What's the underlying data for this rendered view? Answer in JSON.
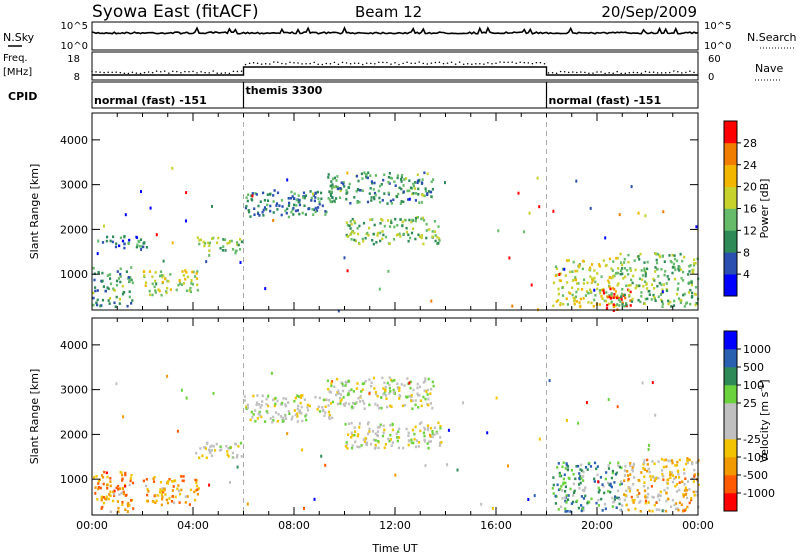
{
  "header": {
    "title": "Syowa East (fitACF)",
    "beam": "Beam 12",
    "date": "20/Sep/2009"
  },
  "top_panels": {
    "nsky_label": "N.Sky",
    "nsearch_label": "N.Search",
    "nsky_ticks": [
      "10^5",
      "10^0"
    ],
    "nsearch_ticks": [
      "10^5",
      "10^0"
    ],
    "freq_label": "Freq.",
    "freq_unit": "[MHz]",
    "freq_ticks": [
      "18",
      "8"
    ],
    "nave_label": "Nave",
    "nave_ticks": [
      "60",
      "0"
    ],
    "cpid_label": "CPID",
    "cpid_segments": [
      {
        "label": "normal (fast) -151",
        "start_h": 0,
        "end_h": 6
      },
      {
        "label": "themis 3300",
        "start_h": 6,
        "end_h": 18
      },
      {
        "label": "normal (fast) -151",
        "start_h": 18,
        "end_h": 24
      }
    ]
  },
  "colors": {
    "power_scale": [
      "#0000ff",
      "#2a4fb0",
      "#2e8b57",
      "#66bb6a",
      "#c8d22c",
      "#f2b600",
      "#f07d00",
      "#ff0000"
    ],
    "velocity_scale": [
      "#ff0000",
      "#ff5a00",
      "#f09a00",
      "#f2c300",
      "#c0c0c0",
      "#c0c0c0",
      "#6ad23c",
      "#2e8b57",
      "#2a60b0",
      "#0000ff"
    ]
  },
  "chart_data": [
    {
      "type": "heatmap",
      "name": "power-panel",
      "xlabel": "",
      "ylabel": "Slant Range [km]",
      "xlim": [
        0,
        24
      ],
      "ylim": [
        200,
        4600
      ],
      "y_ticks": [
        1000,
        2000,
        3000,
        4000
      ],
      "y_tick_labels": [
        "1000",
        "2000",
        "3000",
        "4000"
      ],
      "colorbar": {
        "label": "Power [dB]",
        "range": [
          0,
          32
        ],
        "ticks": [
          "28",
          "24",
          "20",
          "16",
          "12",
          "8",
          "4"
        ]
      },
      "echo_regions": [
        {
          "t0": 0.0,
          "t1": 1.6,
          "r0": 300,
          "r1": 1200,
          "level": 0.35
        },
        {
          "t0": 0.3,
          "t1": 2.2,
          "r0": 1600,
          "r1": 1900,
          "level": 0.25
        },
        {
          "t0": 2.0,
          "t1": 4.2,
          "r0": 550,
          "r1": 1100,
          "level": 0.55
        },
        {
          "t0": 4.0,
          "t1": 5.9,
          "r0": 1500,
          "r1": 1850,
          "level": 0.45
        },
        {
          "t0": 6.0,
          "t1": 9.5,
          "r0": 2300,
          "r1": 2900,
          "level": 0.3
        },
        {
          "t0": 9.3,
          "t1": 13.5,
          "r0": 2600,
          "r1": 3300,
          "level": 0.35
        },
        {
          "t0": 10.0,
          "t1": 13.8,
          "r0": 1700,
          "r1": 2300,
          "level": 0.45
        },
        {
          "t0": 18.2,
          "t1": 20.8,
          "r0": 300,
          "r1": 1400,
          "level": 0.55
        },
        {
          "t0": 20.2,
          "t1": 21.3,
          "r0": 200,
          "r1": 700,
          "level": 0.95
        },
        {
          "t0": 20.8,
          "t1": 24.0,
          "r0": 300,
          "r1": 1500,
          "level": 0.45
        }
      ]
    },
    {
      "type": "heatmap",
      "name": "velocity-panel",
      "xlabel": "Time UT",
      "ylabel": "Slant Range [km]",
      "xlim": [
        0,
        24
      ],
      "ylim": [
        200,
        4600
      ],
      "x_ticks": [
        0,
        4,
        8,
        12,
        16,
        20,
        24
      ],
      "x_tick_labels": [
        "00:00",
        "04:00",
        "08:00",
        "12:00",
        "16:00",
        "20:00",
        "00:00"
      ],
      "y_ticks": [
        1000,
        2000,
        3000,
        4000
      ],
      "y_tick_labels": [
        "1000",
        "2000",
        "3000",
        "4000"
      ],
      "colorbar": {
        "label": "Velocity [m s^-1]",
        "ticks": [
          "1000",
          "500",
          "100",
          "25",
          "-25",
          "-100",
          "-500",
          "-1000"
        ]
      },
      "echo_regions": [
        {
          "t0": 0.0,
          "t1": 1.6,
          "r0": 300,
          "r1": 1200,
          "level": 0.25
        },
        {
          "t0": 2.0,
          "t1": 4.2,
          "r0": 450,
          "r1": 1100,
          "level": 0.28
        },
        {
          "t0": 4.0,
          "t1": 5.9,
          "r0": 1500,
          "r1": 1850,
          "level": 0.48
        },
        {
          "t0": 6.0,
          "t1": 9.5,
          "r0": 2300,
          "r1": 2900,
          "level": 0.5
        },
        {
          "t0": 9.3,
          "t1": 13.5,
          "r0": 2600,
          "r1": 3300,
          "level": 0.5
        },
        {
          "t0": 10.0,
          "t1": 13.8,
          "r0": 1700,
          "r1": 2300,
          "level": 0.5
        },
        {
          "t0": 18.2,
          "t1": 21.0,
          "r0": 300,
          "r1": 1400,
          "level": 0.72
        },
        {
          "t0": 21.0,
          "t1": 24.0,
          "r0": 300,
          "r1": 1500,
          "level": 0.35
        }
      ]
    }
  ]
}
